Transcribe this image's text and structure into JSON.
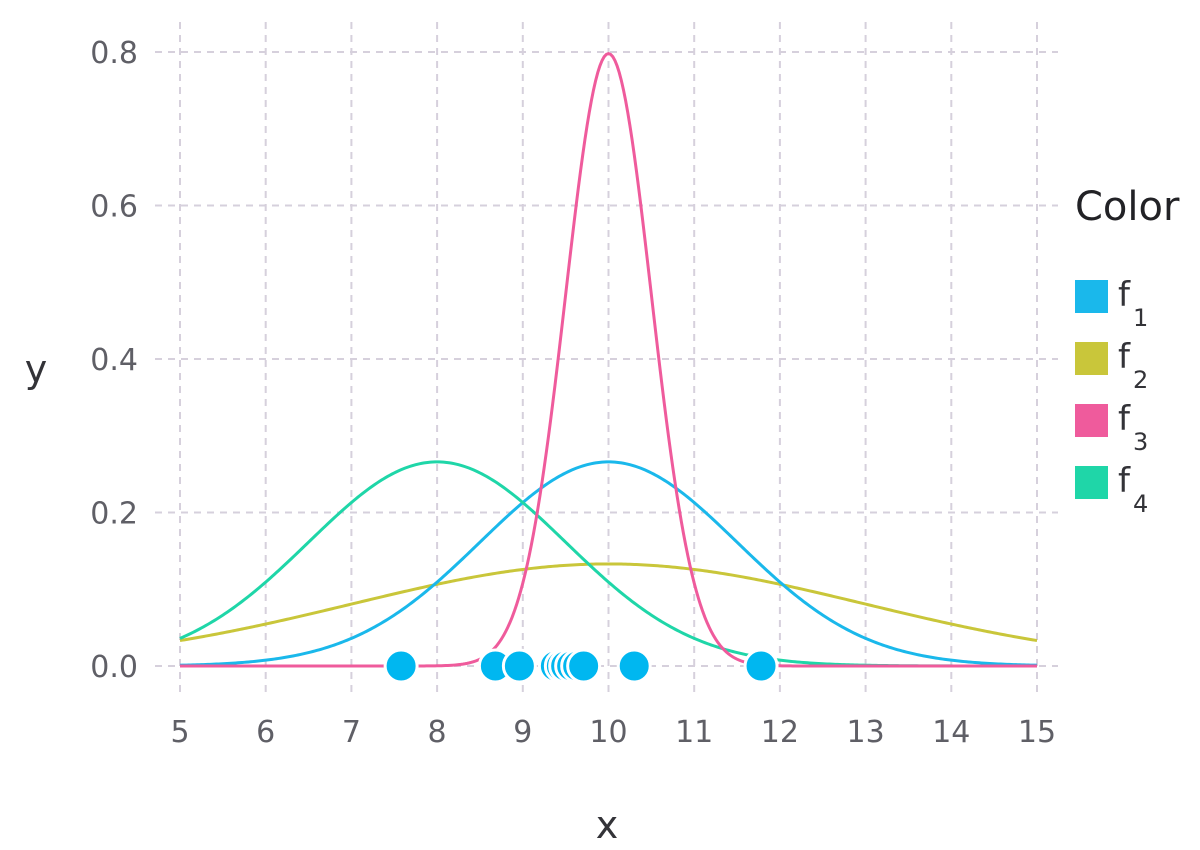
{
  "chart_data": {
    "type": "line",
    "xlabel": "x",
    "ylabel": "y",
    "xlim": [
      5,
      15
    ],
    "ylim": [
      0,
      0.8
    ],
    "x_ticks": [
      "5",
      "6",
      "7",
      "8",
      "9",
      "10",
      "11",
      "12",
      "13",
      "14",
      "15"
    ],
    "y_ticks": [
      "0.0",
      "0.2",
      "0.4",
      "0.6",
      "0.8"
    ],
    "grid": true,
    "legend": {
      "title": "Color",
      "placement": "right"
    },
    "series": [
      {
        "name": "f",
        "subscript": "1",
        "color": "#1ab8eb",
        "mean": 10,
        "sd": 1.5,
        "x": [
          5,
          6,
          7,
          8,
          9,
          10,
          11,
          12,
          13,
          14,
          15
        ],
        "y": [
          0.001,
          0.01,
          0.036,
          0.109,
          0.213,
          0.266,
          0.213,
          0.109,
          0.036,
          0.01,
          0.001
        ]
      },
      {
        "name": "f",
        "subscript": "2",
        "color": "#c9c63a",
        "mean": 10,
        "sd": 3,
        "x": [
          5,
          6,
          7,
          8,
          9,
          10,
          11,
          12,
          13,
          14,
          15
        ],
        "y": [
          0.033,
          0.055,
          0.081,
          0.106,
          0.126,
          0.133,
          0.126,
          0.106,
          0.081,
          0.055,
          0.033
        ]
      },
      {
        "name": "f",
        "subscript": "3",
        "color": "#ef5b9c",
        "mean": 10,
        "sd": 0.5,
        "x": [
          5,
          8,
          8.5,
          9,
          9.5,
          10,
          10.5,
          11,
          11.5,
          12,
          15
        ],
        "y": [
          0.0,
          0.0003,
          0.009,
          0.108,
          0.484,
          0.798,
          0.484,
          0.108,
          0.009,
          0.0003,
          0.0
        ]
      },
      {
        "name": "f",
        "subscript": "4",
        "color": "#1fd6a8",
        "mean": 8,
        "sd": 1.5,
        "x": [
          5,
          6,
          7,
          8,
          9,
          10,
          11,
          12,
          13,
          14,
          15
        ],
        "y": [
          0.036,
          0.109,
          0.213,
          0.266,
          0.213,
          0.109,
          0.036,
          0.01,
          0.001,
          0.0,
          0.0
        ]
      }
    ],
    "points": {
      "color": "#00b7f0",
      "y": 0,
      "x": [
        7.58,
        8.68,
        8.96,
        9.38,
        9.45,
        9.5,
        9.57,
        9.64,
        9.71,
        10.3,
        11.78
      ]
    }
  }
}
